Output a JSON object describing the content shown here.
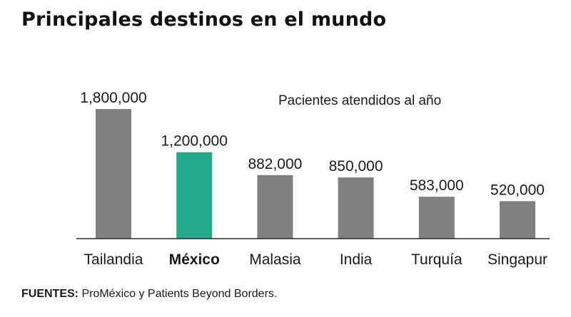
{
  "header": {
    "title": "Principales destinos en el mundo"
  },
  "chart_data": {
    "type": "bar",
    "title": "Principales destinos en el mundo",
    "subtitle": "Pacientes atendidos al año",
    "categories": [
      "Tailandia",
      "México",
      "Malasia",
      "India",
      "Turquía",
      "Singapur"
    ],
    "values": [
      1800000,
      1200000,
      882000,
      850000,
      583000,
      520000
    ],
    "value_labels": [
      "1,800,000",
      "1,200,000",
      "882,000",
      "850,000",
      "583,000",
      "520,000"
    ],
    "highlight_category": "México",
    "ylim": [
      0,
      1800000
    ],
    "grid": false,
    "colors": {
      "default_bar": "#808083",
      "highlight_bar": "#22a98a",
      "baseline": "#2a2a2a"
    }
  },
  "footer": {
    "source_label": "FUENTES:",
    "source_text": " ProMéxico y Patients Beyond Borders."
  }
}
